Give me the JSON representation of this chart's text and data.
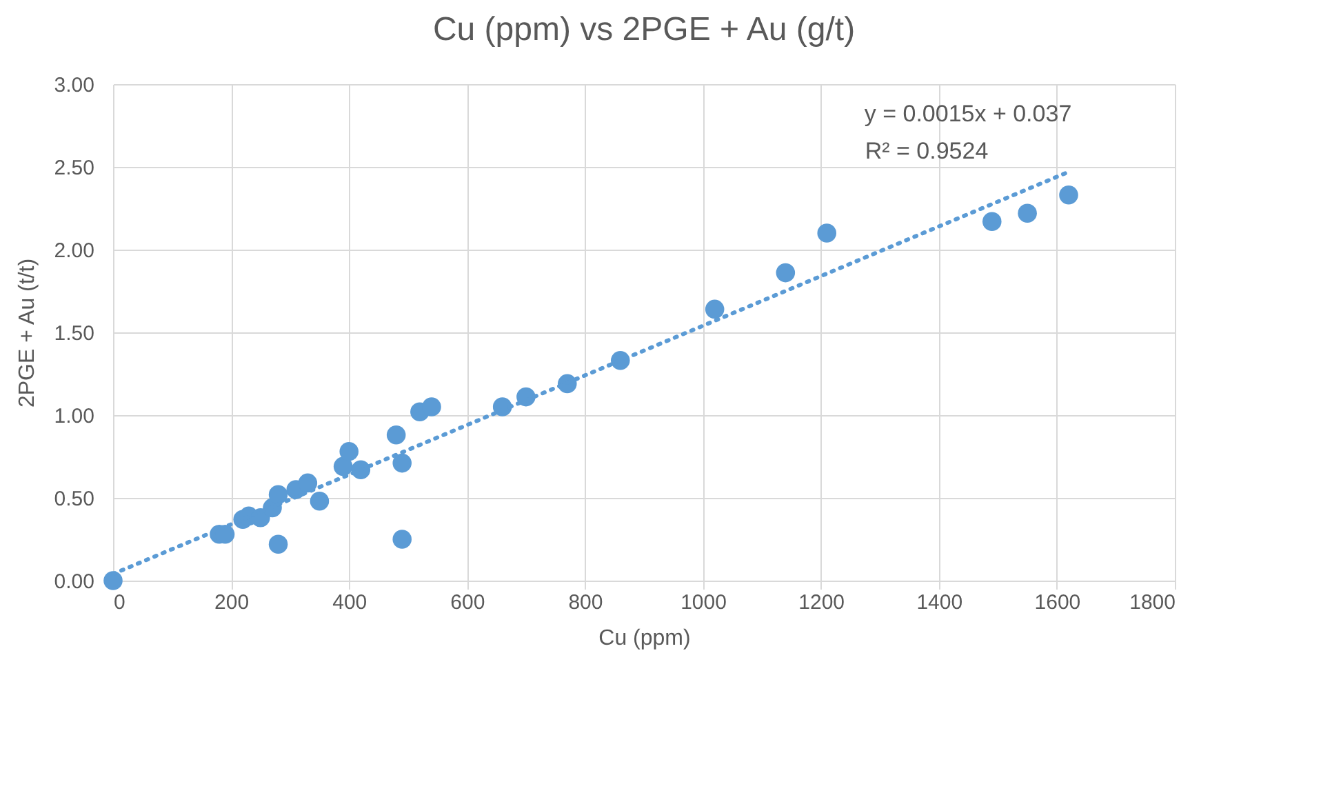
{
  "chart_data": {
    "type": "scatter",
    "title": "Cu (ppm) vs 2PGE + Au (g/t)",
    "xlabel": "Cu (ppm)",
    "ylabel": "2PGE + Au (t/t)",
    "xlim": [
      0,
      1800
    ],
    "xticks": [
      0,
      200,
      400,
      600,
      800,
      1000,
      1200,
      1400,
      1600,
      1800
    ],
    "ylim": [
      0,
      3
    ],
    "yticks": [
      {
        "value": 0,
        "label": "0.00"
      },
      {
        "value": 0.5,
        "label": "0.50"
      },
      {
        "value": 1,
        "label": "1.00"
      },
      {
        "value": 1.5,
        "label": "1.50"
      },
      {
        "value": 2,
        "label": "2.00"
      },
      {
        "value": 2.5,
        "label": "2.50"
      },
      {
        "value": 3,
        "label": "3.00"
      }
    ],
    "grid": true,
    "annotations": [
      "y = 0.0015x + 0.037",
      "R² = 0.9524"
    ],
    "series": [
      {
        "marker": "circle",
        "color": "#5b9bd5",
        "x": [
          0,
          180,
          190,
          220,
          230,
          250,
          270,
          280,
          280,
          310,
          330,
          350,
          390,
          400,
          420,
          480,
          490,
          490,
          520,
          540,
          660,
          700,
          770,
          860,
          1020,
          1140,
          1210,
          1490,
          1550,
          1620
        ],
        "values": [
          0,
          0.28,
          0.28,
          0.37,
          0.39,
          0.38,
          0.44,
          0.52,
          0.22,
          0.55,
          0.59,
          0.48,
          0.69,
          0.78,
          0.67,
          0.88,
          0.71,
          0.25,
          1.02,
          1.05,
          1.05,
          1.11,
          1.19,
          1.33,
          1.64,
          1.86,
          2.1,
          2.17,
          2.22,
          2.33
        ]
      },
      {
        "type": "line",
        "line_style": "dotted",
        "color": "#5b9bd5",
        "x": [
          0,
          1620
        ],
        "values": [
          0.04,
          2.47
        ]
      }
    ]
  }
}
